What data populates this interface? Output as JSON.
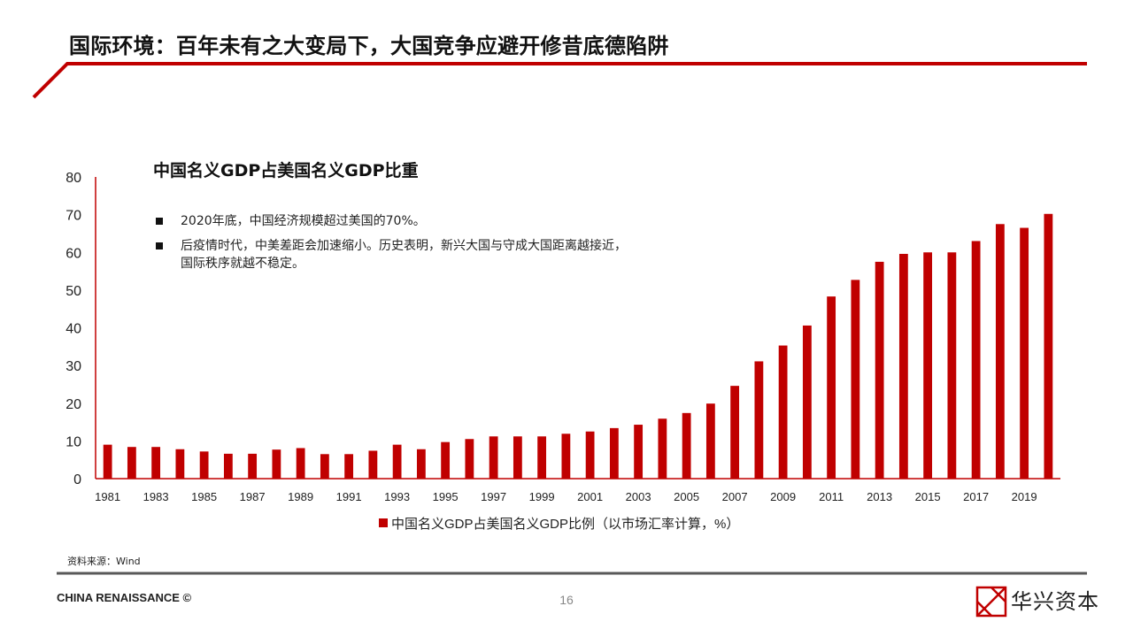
{
  "slide_title": "国际环境：百年未有之大变局下，大国竞争应避开修昔底德陷阱",
  "bullets": [
    "2020年底，中国经济规模超过美国的70%。",
    "后疫情时代，中美差距会加速缩小。历史表明，新兴大国与守成大国距离越接近，",
    "国际秩序就越不稳定。"
  ],
  "source": "资料来源：Wind",
  "footer": {
    "brand": "CHINA RENAISSANCE ©",
    "page_number": "16",
    "logo_text": "华兴资本"
  },
  "colors": {
    "accent": "#c00000",
    "bar": "#c00000",
    "axis": "#c00000",
    "footer_line": "#595959"
  },
  "chart_data": {
    "type": "bar",
    "title": "中国名义GDP占美国名义GDP比重",
    "xlabel": "",
    "ylabel": "",
    "ylim": [
      0,
      80
    ],
    "yticks": [
      0,
      10,
      20,
      30,
      40,
      50,
      60,
      70,
      80
    ],
    "grid": false,
    "legend_position": "bottom",
    "x_tick_labels": [
      "1981",
      "1983",
      "1985",
      "1987",
      "1989",
      "1991",
      "1993",
      "1995",
      "1997",
      "1999",
      "2001",
      "2003",
      "2005",
      "2007",
      "2009",
      "2011",
      "2013",
      "2015",
      "2017",
      "2019"
    ],
    "categories": [
      "1981",
      "1982",
      "1983",
      "1984",
      "1985",
      "1986",
      "1987",
      "1988",
      "1989",
      "1990",
      "1991",
      "1992",
      "1993",
      "1994",
      "1995",
      "1996",
      "1997",
      "1998",
      "1999",
      "2000",
      "2001",
      "2002",
      "2003",
      "2004",
      "2005",
      "2006",
      "2007",
      "2008",
      "2009",
      "2010",
      "2011",
      "2012",
      "2013",
      "2014",
      "2015",
      "2016",
      "2017",
      "2018",
      "2019",
      "2020"
    ],
    "series": [
      {
        "name": "中国名义GDP占美国名义GDP比例（以市场汇率计算，%）",
        "values": [
          9.0,
          8.4,
          8.4,
          7.8,
          7.2,
          6.6,
          6.6,
          7.7,
          8.1,
          6.5,
          6.5,
          7.4,
          9.0,
          7.8,
          9.7,
          10.5,
          11.2,
          11.2,
          11.2,
          11.9,
          12.5,
          13.4,
          14.3,
          15.9,
          17.4,
          19.9,
          24.6,
          31.1,
          35.3,
          40.6,
          48.3,
          52.7,
          57.5,
          59.6,
          60.0,
          60.0,
          63.0,
          67.5,
          66.5,
          70.2
        ]
      }
    ]
  }
}
